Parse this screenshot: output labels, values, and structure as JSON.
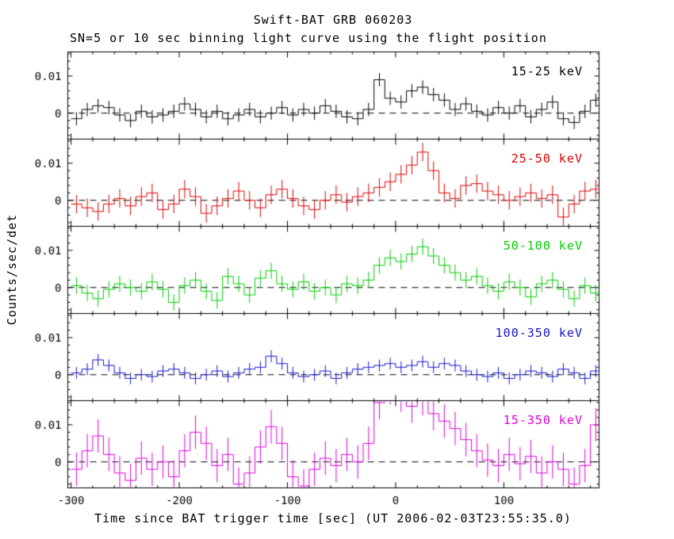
{
  "chart_data": {
    "type": "line",
    "subtype": "step-histogram-with-error-bars",
    "title": "Swift-BAT GRB 060203",
    "subtitle": "SN=5 or 10 sec binning light curve using the flight position",
    "xlabel": "Time since BAT trigger time [sec] (UT 2006-02-03T23:55:35.0)",
    "ylabel": "Counts/sec/det",
    "grid": false,
    "zero_line": "dashed-black",
    "legend_position": "inside-top-right-per-panel",
    "xlim": [
      -303,
      188
    ],
    "xticks": [
      -300,
      -200,
      -100,
      0,
      100
    ],
    "xtick_labels": [
      "-300",
      "-200",
      "-100",
      "0",
      "100"
    ],
    "x_minor_step": 20,
    "ylim": [
      -0.007,
      0.0165
    ],
    "yticks": [
      0,
      0.01
    ],
    "ytick_labels": [
      "0",
      "0.01"
    ],
    "y_minor_step": 0.002,
    "bin_width": 10,
    "x": [
      -295,
      -285,
      -275,
      -265,
      -255,
      -245,
      -235,
      -225,
      -215,
      -205,
      -195,
      -185,
      -175,
      -165,
      -155,
      -145,
      -135,
      -125,
      -115,
      -105,
      -95,
      -85,
      -75,
      -65,
      -55,
      -45,
      -35,
      -25,
      -15,
      -5,
      5,
      15,
      25,
      35,
      45,
      55,
      65,
      75,
      85,
      95,
      105,
      115,
      125,
      135,
      145,
      155,
      165,
      175,
      185
    ],
    "panels": [
      {
        "label": "15-25 keV",
        "color": "#000000",
        "yerr": 0.0018,
        "values": [
          -0.0015,
          0.001,
          0.002,
          0.0015,
          -0.0005,
          -0.002,
          0.0005,
          -0.001,
          -0.0005,
          0.0005,
          0.0025,
          0.001,
          -0.001,
          0.0005,
          -0.0015,
          -0.0005,
          0.001,
          -0.001,
          0.0,
          0.0015,
          -0.0005,
          0.001,
          0.0,
          0.002,
          0.0005,
          -0.001,
          -0.0015,
          0.001,
          0.009,
          0.004,
          0.003,
          0.006,
          0.007,
          0.005,
          0.0035,
          0.001,
          0.0025,
          0.0005,
          -0.0005,
          0.0015,
          0.0,
          0.002,
          -0.001,
          0.001,
          0.003,
          -0.0015,
          -0.0025,
          0.0005,
          0.0035
        ]
      },
      {
        "label": "25-50 keV",
        "color": "#dd0000",
        "yerr": 0.0025,
        "values": [
          -0.001,
          -0.002,
          -0.003,
          -0.001,
          0.0005,
          -0.0015,
          0.001,
          0.002,
          -0.0025,
          -0.001,
          0.003,
          0.001,
          -0.0035,
          -0.0015,
          0.0005,
          0.0025,
          0.0,
          -0.002,
          0.0015,
          0.003,
          0.0005,
          -0.0015,
          -0.0025,
          0.0,
          0.0015,
          -0.0005,
          0.001,
          0.002,
          0.0035,
          0.005,
          0.007,
          0.0095,
          0.013,
          0.008,
          0.002,
          0.0005,
          0.004,
          0.0045,
          0.0025,
          0.0015,
          0.0,
          0.001,
          0.002,
          0.0005,
          0.0015,
          -0.0045,
          -0.001,
          0.0025,
          0.003
        ]
      },
      {
        "label": "50-100 keV",
        "color": "#00cc00",
        "yerr": 0.0022,
        "values": [
          0.0005,
          -0.0015,
          -0.003,
          -0.0005,
          0.001,
          0.0,
          -0.001,
          0.0015,
          -0.0005,
          -0.004,
          0.0005,
          0.002,
          -0.001,
          -0.0035,
          0.003,
          0.001,
          -0.002,
          0.0025,
          0.0045,
          0.001,
          -0.0005,
          0.0015,
          -0.001,
          0.0,
          -0.002,
          0.001,
          0.0005,
          0.002,
          0.006,
          0.008,
          0.007,
          0.009,
          0.011,
          0.0085,
          0.006,
          0.004,
          0.002,
          0.003,
          0.0005,
          -0.001,
          0.0015,
          0.0,
          -0.0025,
          0.001,
          0.002,
          -0.0005,
          -0.003,
          0.0005,
          -0.0015
        ]
      },
      {
        "label": "100-350 keV",
        "color": "#1515cc",
        "yerr": 0.0016,
        "values": [
          0.0005,
          0.0015,
          0.004,
          0.0025,
          0.0005,
          -0.001,
          0.0,
          -0.0005,
          0.001,
          0.0015,
          0.0005,
          -0.001,
          0.0,
          0.001,
          -0.0005,
          0.0005,
          0.0015,
          0.002,
          0.005,
          0.003,
          0.0005,
          -0.0005,
          0.0,
          0.001,
          -0.001,
          0.0005,
          0.0015,
          0.002,
          0.0025,
          0.003,
          0.002,
          0.0025,
          0.0035,
          0.002,
          0.003,
          0.0025,
          0.001,
          0.0,
          -0.0005,
          0.0005,
          -0.001,
          0.0,
          0.001,
          0.0005,
          -0.0005,
          0.0015,
          0.0005,
          -0.001,
          0.001
        ]
      },
      {
        "label": "15-350 keV",
        "color": "#dd00dd",
        "yerr": 0.0045,
        "values": [
          -0.002,
          0.003,
          0.007,
          0.002,
          -0.003,
          -0.005,
          0.001,
          -0.002,
          0.0,
          -0.004,
          0.003,
          0.008,
          0.005,
          -0.001,
          0.002,
          -0.006,
          -0.003,
          0.004,
          0.0095,
          0.005,
          -0.004,
          -0.0065,
          -0.002,
          0.001,
          -0.001,
          0.002,
          0.0,
          0.005,
          0.016,
          0.02,
          0.018,
          0.015,
          0.017,
          0.013,
          0.011,
          0.009,
          0.006,
          0.003,
          0.0005,
          -0.001,
          0.002,
          -0.0005,
          0.0015,
          -0.003,
          0.0,
          -0.002,
          -0.006,
          -0.001,
          0.01
        ]
      }
    ]
  }
}
